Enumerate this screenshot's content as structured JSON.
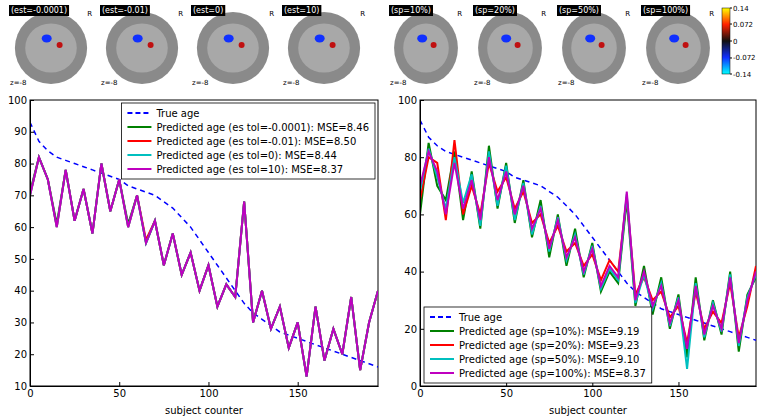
{
  "chart_data": [
    {
      "type": "line",
      "brain_maps": [
        {
          "title": "(est=-0.0001)",
          "side": "R",
          "slice": "z=-8"
        },
        {
          "title": "(est=-0.01)",
          "side": "R",
          "slice": "z=-8"
        },
        {
          "title": "(est=0)",
          "side": "R",
          "slice": "z=-8"
        },
        {
          "title": "(est=10)",
          "side": "R",
          "slice": "z=-8"
        }
      ],
      "x": [
        0,
        5,
        10,
        15,
        20,
        25,
        30,
        35,
        40,
        45,
        50,
        55,
        60,
        65,
        70,
        75,
        80,
        85,
        90,
        95,
        100,
        105,
        110,
        115,
        120,
        125,
        130,
        135,
        140,
        145,
        150,
        155,
        160,
        165,
        170,
        175,
        180,
        185,
        190,
        195
      ],
      "xlim": [
        0,
        195
      ],
      "xticks": [
        0,
        50,
        100,
        150
      ],
      "x_label": "subject counter",
      "ylim": [
        10,
        100
      ],
      "yticks": [
        10,
        20,
        30,
        40,
        50,
        60,
        70,
        80,
        90,
        100
      ],
      "legend": "upper right",
      "series": [
        {
          "name": "True age",
          "color": "#0000ff",
          "line_style": "dashed",
          "values": [
            93,
            87,
            84,
            82,
            81,
            80,
            79,
            78,
            77,
            76,
            75,
            73,
            72,
            71,
            70,
            68,
            66,
            63,
            60,
            56,
            52,
            48,
            44,
            40,
            36,
            33,
            31,
            29,
            27,
            26,
            25,
            24,
            23,
            22,
            21,
            20,
            19,
            18,
            17,
            16
          ]
        },
        {
          "name": "Predicted age (es tol=-0.0001): MSE=8.46",
          "color": "#008000",
          "line_style": "solid",
          "values": [
            71,
            82,
            75,
            61,
            78,
            62,
            72,
            58,
            80,
            65,
            75,
            61,
            70,
            55,
            62,
            48,
            58,
            45,
            52,
            40,
            48,
            35,
            42,
            38,
            68,
            30,
            40,
            28,
            35,
            22,
            30,
            13,
            35,
            18,
            28,
            20,
            38,
            15,
            30,
            40
          ]
        },
        {
          "name": "Predicted age (es tol=-0.01): MSE=8.50",
          "color": "#ff0000",
          "line_style": "solid",
          "values": [
            70,
            82,
            75,
            60,
            78,
            62,
            72,
            58,
            80,
            65,
            75,
            60,
            70,
            56,
            62,
            48,
            58,
            45,
            52,
            40,
            48,
            35,
            42,
            38,
            68,
            30,
            40,
            28,
            35,
            22,
            30,
            13,
            35,
            18,
            28,
            20,
            38,
            15,
            30,
            40
          ]
        },
        {
          "name": "Predicted age (es tol=0): MSE=8.44",
          "color": "#00bfbf",
          "line_style": "solid",
          "values": [
            70,
            82,
            75,
            60,
            78,
            62,
            72,
            58,
            80,
            65,
            75,
            60,
            70,
            55,
            62,
            48,
            58,
            45,
            52,
            40,
            48,
            35,
            42,
            38,
            68,
            30,
            40,
            28,
            35,
            22,
            30,
            13,
            35,
            18,
            28,
            20,
            38,
            15,
            30,
            40
          ]
        },
        {
          "name": "Predicted age (es tol=10): MSE=8.37",
          "color": "#bf00bf",
          "line_style": "solid",
          "values": [
            70,
            82,
            75,
            60,
            78,
            62,
            72,
            58,
            80,
            65,
            75,
            60,
            70,
            55,
            62,
            48,
            58,
            45,
            52,
            40,
            48,
            35,
            42,
            38,
            68,
            30,
            40,
            28,
            35,
            22,
            30,
            13,
            35,
            18,
            28,
            20,
            38,
            15,
            30,
            40
          ]
        }
      ]
    },
    {
      "type": "line",
      "brain_maps": [
        {
          "title": "(sp=10%)",
          "side": "R",
          "slice": "z=-8"
        },
        {
          "title": "(sp=20%)",
          "side": "R",
          "slice": "z=-8"
        },
        {
          "title": "(sp=50%)",
          "side": "R",
          "slice": "z=-8"
        },
        {
          "title": "(sp=100%)",
          "side": "R",
          "slice": "z=-8"
        }
      ],
      "colorbar": {
        "range": [
          -0.14,
          0.14
        ],
        "ticks": [
          0.14,
          0.072,
          0,
          -0.072,
          -0.14
        ]
      },
      "x": [
        0,
        5,
        10,
        15,
        20,
        25,
        30,
        35,
        40,
        45,
        50,
        55,
        60,
        65,
        70,
        75,
        80,
        85,
        90,
        95,
        100,
        105,
        110,
        115,
        120,
        125,
        130,
        135,
        140,
        145,
        150,
        155,
        160,
        165,
        170,
        175,
        180,
        185,
        190,
        195
      ],
      "xlim": [
        0,
        195
      ],
      "xticks": [
        0,
        50,
        100,
        150
      ],
      "x_label": "subject counter",
      "ylim": [
        0,
        100
      ],
      "yticks": [
        0,
        20,
        40,
        60,
        80,
        100
      ],
      "legend": "lower left",
      "series": [
        {
          "name": "True age",
          "color": "#0000ff",
          "line_style": "dashed",
          "values": [
            93,
            87,
            84,
            82,
            81,
            80,
            79,
            78,
            77,
            76,
            75,
            73,
            72,
            71,
            70,
            68,
            66,
            63,
            60,
            56,
            52,
            48,
            44,
            40,
            36,
            33,
            31,
            29,
            27,
            26,
            25,
            24,
            23,
            22,
            21,
            20,
            19,
            18,
            17,
            16
          ]
        },
        {
          "name": "Predicted age (sp=10%): MSE=9.19",
          "color": "#008000",
          "line_style": "solid",
          "values": [
            60,
            85,
            70,
            65,
            82,
            58,
            75,
            55,
            84,
            62,
            78,
            57,
            72,
            52,
            65,
            45,
            60,
            42,
            55,
            38,
            50,
            33,
            40,
            36,
            65,
            28,
            42,
            25,
            38,
            20,
            32,
            10,
            38,
            16,
            30,
            18,
            40,
            12,
            32,
            38
          ]
        },
        {
          "name": "Predicted age (sp=20%): MSE=9.23",
          "color": "#ff0000",
          "line_style": "solid",
          "values": [
            65,
            80,
            78,
            58,
            86,
            60,
            70,
            60,
            78,
            68,
            73,
            62,
            68,
            57,
            60,
            50,
            56,
            47,
            50,
            42,
            46,
            37,
            44,
            40,
            66,
            32,
            38,
            30,
            33,
            24,
            28,
            15,
            33,
            20,
            26,
            22,
            36,
            17,
            28,
            42
          ]
        },
        {
          "name": "Predicted age (sp=50%): MSE=9.10",
          "color": "#00bfbf",
          "line_style": "solid",
          "values": [
            68,
            83,
            73,
            62,
            80,
            64,
            74,
            56,
            82,
            63,
            77,
            58,
            71,
            53,
            63,
            47,
            59,
            44,
            53,
            39,
            49,
            34,
            41,
            37,
            67,
            29,
            39,
            27,
            36,
            21,
            31,
            6,
            36,
            17,
            29,
            19,
            39,
            14,
            31,
            39
          ]
        },
        {
          "name": "Predicted age (sp=100%): MSE=8.37",
          "color": "#bf00bf",
          "line_style": "solid",
          "values": [
            70,
            82,
            75,
            60,
            78,
            62,
            72,
            58,
            80,
            65,
            75,
            60,
            70,
            55,
            62,
            48,
            58,
            45,
            52,
            40,
            48,
            35,
            42,
            38,
            68,
            30,
            40,
            28,
            35,
            22,
            30,
            13,
            35,
            18,
            28,
            20,
            38,
            15,
            30,
            40
          ]
        }
      ]
    }
  ]
}
